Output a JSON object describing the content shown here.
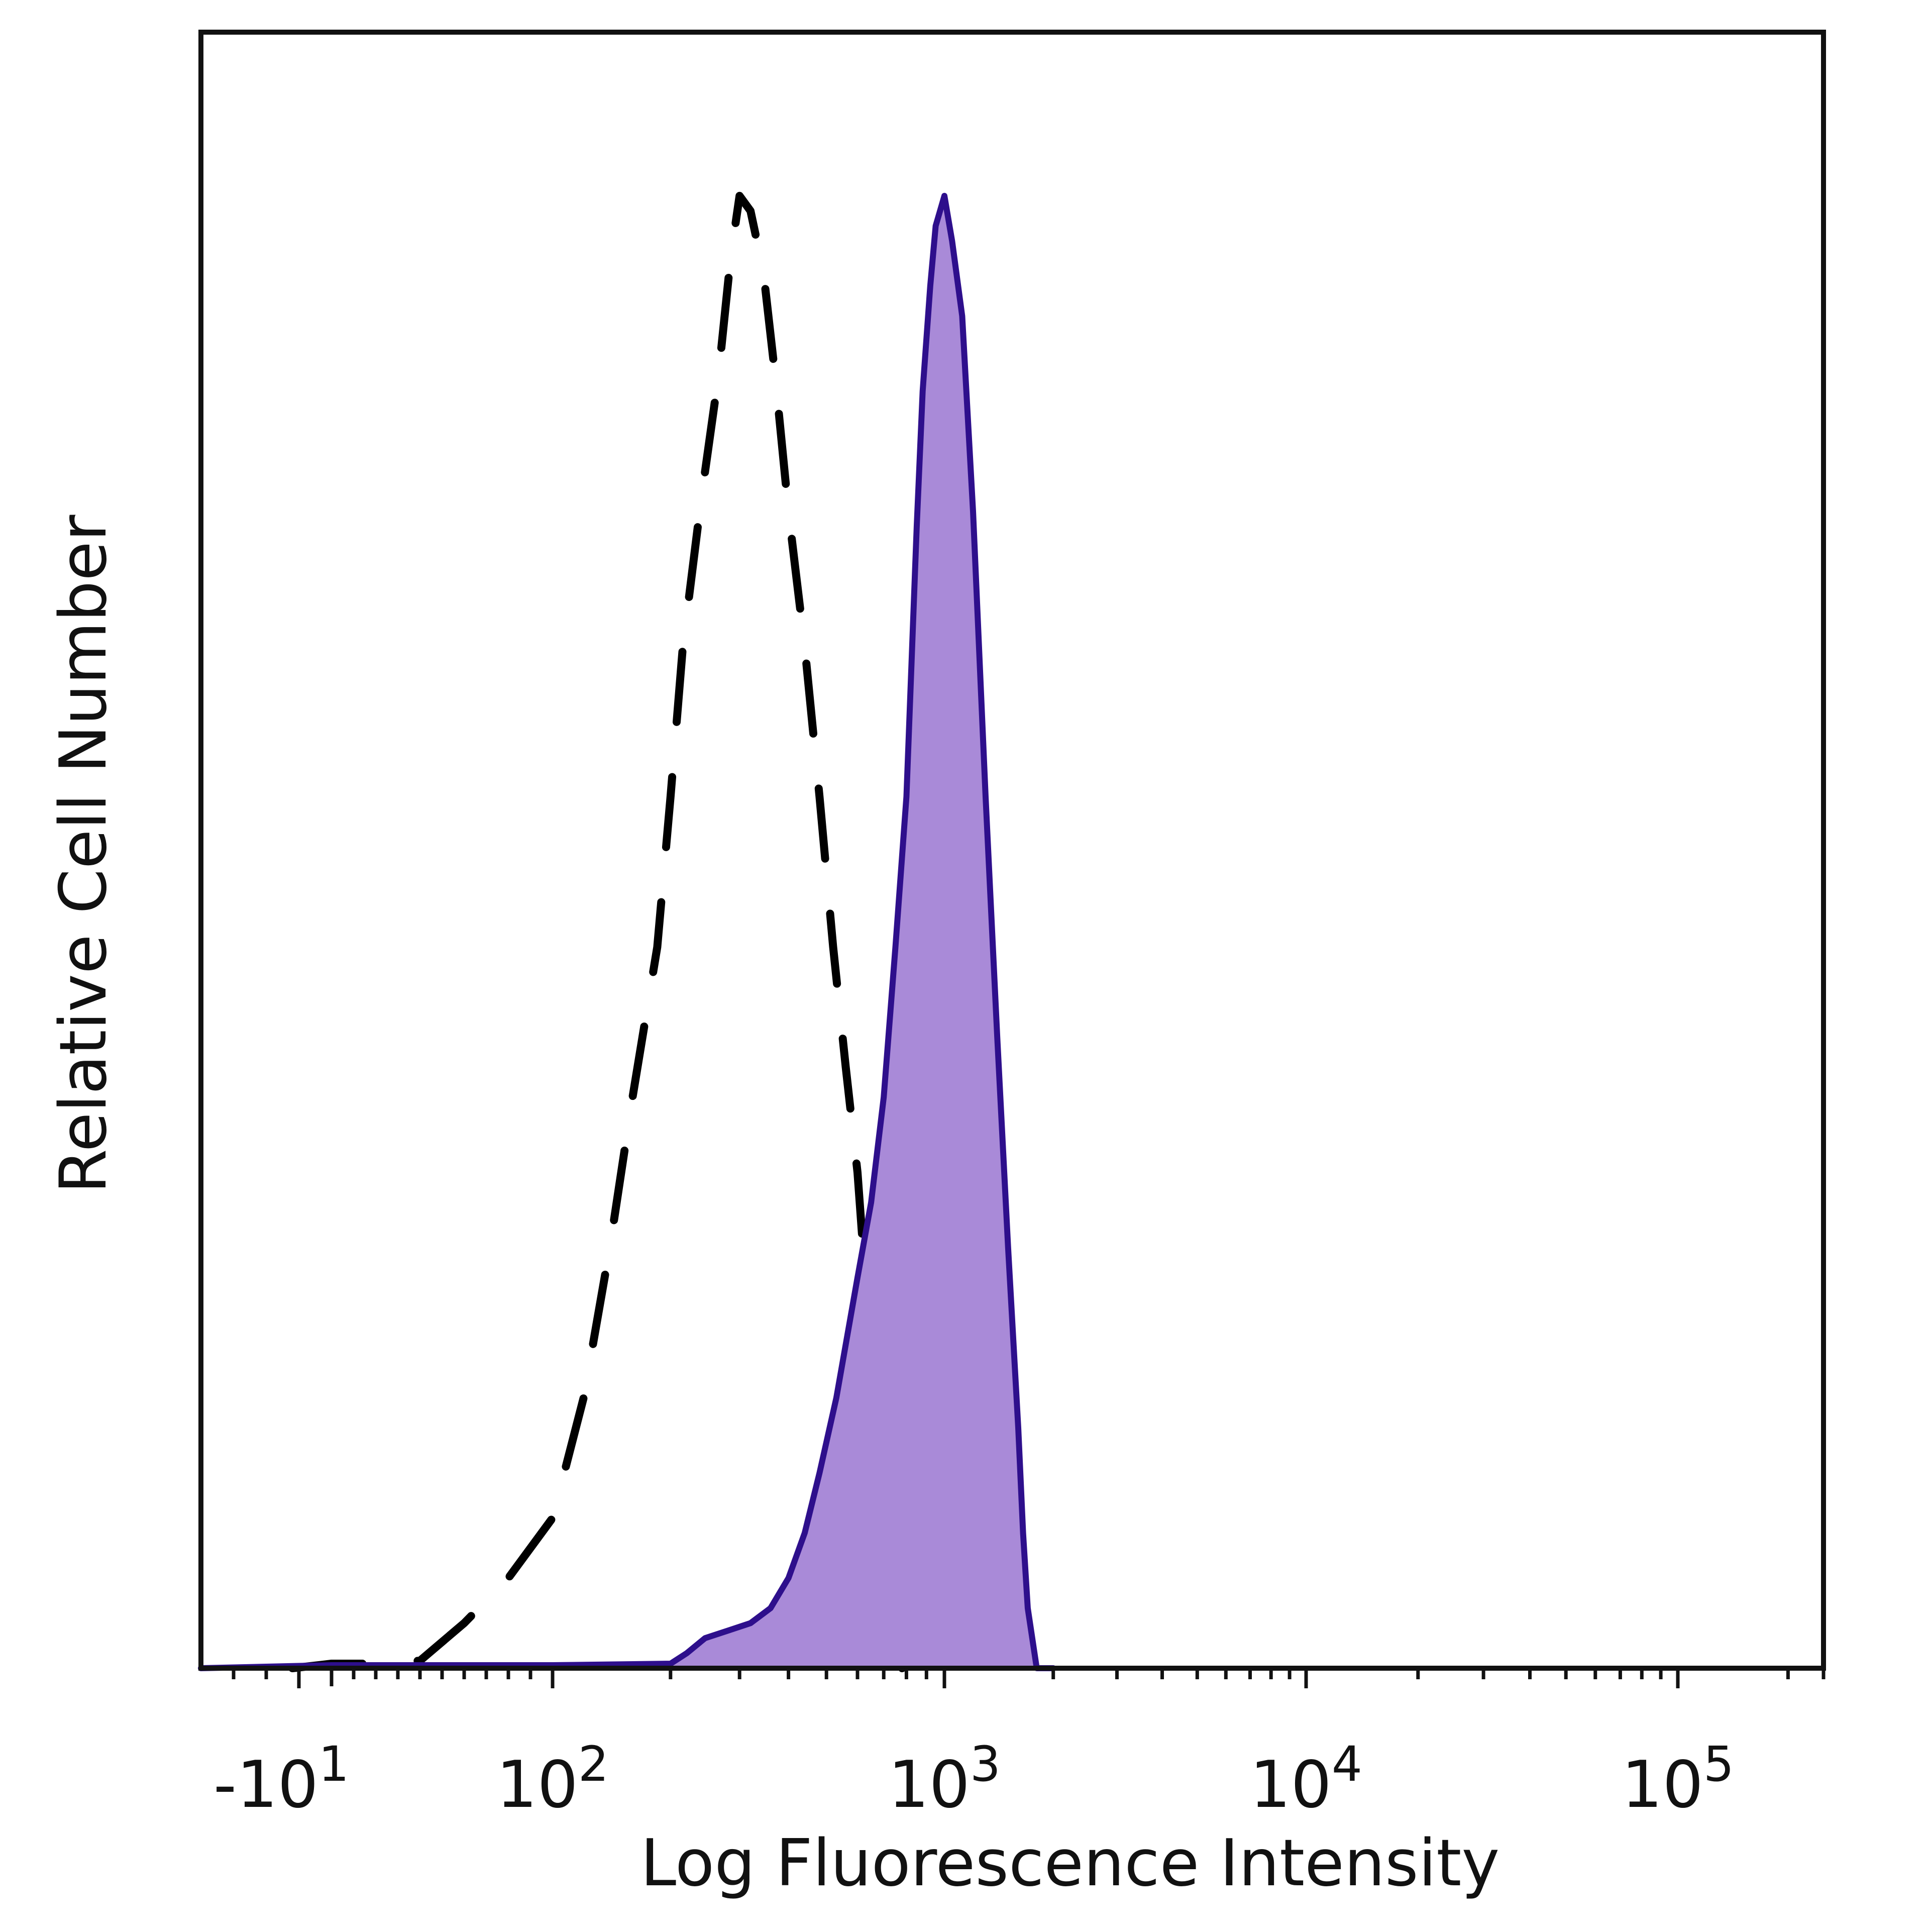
{
  "chart_data": {
    "type": "line",
    "title": "",
    "xlabel": "Log Fluorescence Intensity",
    "ylabel": "Relative Cell Number",
    "x_scale": "biexponential",
    "xlim": [
      -30,
      250000
    ],
    "ylim": [
      0,
      100
    ],
    "grid": false,
    "legend": "none",
    "x_ticks": [
      {
        "value": -10,
        "base": "-10",
        "exp": "1"
      },
      {
        "value": 100,
        "base": "10",
        "exp": "2"
      },
      {
        "value": 1000,
        "base": "10",
        "exp": "3"
      },
      {
        "value": 10000,
        "base": "10",
        "exp": "4"
      },
      {
        "value": 100000,
        "base": "10",
        "exp": "5"
      }
    ],
    "series": [
      {
        "style": "dashed",
        "color": "#000000",
        "fill": "none",
        "x": [
          -12,
          0,
          20,
          40,
          60,
          80,
          100,
          120,
          140,
          160,
          185,
          200,
          215,
          240,
          265,
          285,
          300,
          320,
          345,
          370,
          400,
          440,
          480,
          520,
          560,
          600,
          640,
          680,
          730,
          780
        ],
        "y": [
          0,
          0.3,
          0.3,
          0.5,
          3,
          6,
          10,
          18,
          28,
          38,
          48,
          58,
          68,
          78,
          86,
          94,
          98,
          97,
          93,
          86,
          77,
          68,
          58,
          48,
          40,
          33,
          23,
          14,
          6,
          0
        ]
      },
      {
        "style": "solid-filled",
        "color": "#2e0f8c",
        "fill": "#a98ad8",
        "x": [
          -40,
          0,
          50,
          100,
          200,
          220,
          245,
          280,
          320,
          360,
          400,
          440,
          480,
          530,
          600,
          650,
          700,
          750,
          800,
          850,
          880,
          920,
          950,
          1000,
          1050,
          1120,
          1200,
          1300,
          1400,
          1500,
          1600,
          1650,
          1700,
          1800,
          2000
        ],
        "y": [
          0,
          0.2,
          0.2,
          0.2,
          0.3,
          1,
          2,
          2.5,
          3,
          4,
          6,
          9,
          13,
          18,
          26,
          31,
          38,
          48,
          58,
          76,
          85,
          92,
          96,
          98,
          95,
          90,
          77,
          58,
          42,
          28,
          16,
          9,
          4,
          0,
          0
        ]
      }
    ]
  }
}
